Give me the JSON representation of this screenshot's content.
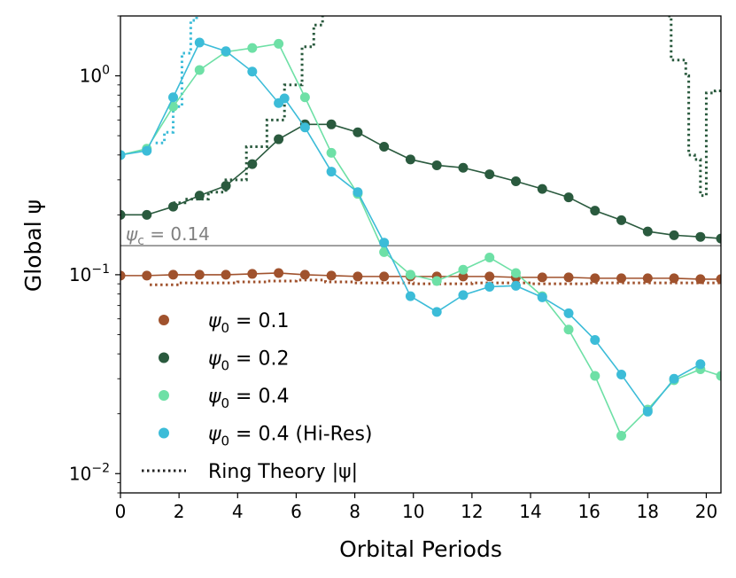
{
  "chart_data": {
    "type": "line",
    "xlabel": "Orbital Periods",
    "ylabel": "Global ψ",
    "xlim": [
      0,
      20.5
    ],
    "ylim": [
      0.008,
      2.0
    ],
    "yscale": "log",
    "grid": false,
    "legend_position": "lower-left",
    "x_ticks": [
      0,
      2,
      4,
      6,
      8,
      10,
      12,
      14,
      16,
      18,
      20
    ],
    "x_tick_labels": [
      "0",
      "2",
      "4",
      "6",
      "8",
      "10",
      "12",
      "14",
      "16",
      "18",
      "20"
    ],
    "y_ticks": [
      {
        "value": 1.0,
        "base": "10",
        "exp": "0"
      },
      {
        "value": 0.1,
        "base": "10",
        "exp": "−1"
      },
      {
        "value": 0.01,
        "base": "10",
        "exp": "−2"
      }
    ],
    "threshold": {
      "value": 0.14,
      "label_main": "ψ",
      "label_sub": "c",
      "label_rest": " = 0.14",
      "color": "#808080"
    },
    "series": [
      {
        "name": "ψ₀ = 0.1",
        "legend_main": "ψ",
        "legend_sub": "0",
        "legend_rest": " = 0.1",
        "color": "#a0522d",
        "x": [
          0,
          0.9,
          1.8,
          2.7,
          3.6,
          4.5,
          5.4,
          6.3,
          7.2,
          8.1,
          9.0,
          9.9,
          10.8,
          11.7,
          12.6,
          13.5,
          14.4,
          15.3,
          16.2,
          17.1,
          18.0,
          18.9,
          19.8,
          20.5
        ],
        "y": [
          0.099,
          0.099,
          0.1,
          0.1,
          0.1,
          0.101,
          0.102,
          0.1,
          0.099,
          0.098,
          0.098,
          0.098,
          0.098,
          0.098,
          0.098,
          0.097,
          0.097,
          0.097,
          0.096,
          0.096,
          0.096,
          0.096,
          0.095,
          0.095
        ]
      },
      {
        "name": "ψ₀ = 0.2",
        "legend_main": "ψ",
        "legend_sub": "0",
        "legend_rest": " = 0.2",
        "color": "#2a5a3e",
        "x": [
          0,
          0.9,
          1.8,
          2.7,
          3.6,
          4.5,
          5.4,
          6.3,
          7.2,
          8.1,
          9.0,
          9.9,
          10.8,
          11.7,
          12.6,
          13.5,
          14.4,
          15.3,
          16.2,
          17.1,
          18.0,
          18.9,
          19.8,
          20.5
        ],
        "y": [
          0.2,
          0.2,
          0.22,
          0.25,
          0.28,
          0.36,
          0.48,
          0.57,
          0.57,
          0.52,
          0.44,
          0.38,
          0.355,
          0.345,
          0.32,
          0.295,
          0.27,
          0.245,
          0.21,
          0.188,
          0.165,
          0.158,
          0.155,
          0.152
        ]
      },
      {
        "name": "ψ₀ = 0.4",
        "legend_main": "ψ",
        "legend_sub": "0",
        "legend_rest": " = 0.4",
        "color": "#6ee0a6",
        "x": [
          0,
          0.9,
          1.8,
          2.7,
          3.6,
          4.5,
          5.4,
          6.3,
          7.2,
          8.1,
          9.0,
          9.9,
          10.8,
          11.7,
          12.6,
          13.5,
          14.4,
          15.3,
          16.2,
          17.1,
          18.0,
          18.9,
          19.8,
          20.5
        ],
        "y": [
          0.4,
          0.43,
          0.7,
          1.07,
          1.32,
          1.38,
          1.45,
          0.78,
          0.41,
          0.255,
          0.13,
          0.1,
          0.093,
          0.106,
          0.122,
          0.102,
          0.078,
          0.053,
          0.031,
          0.0155,
          0.021,
          0.0295,
          0.0335,
          0.031
        ]
      },
      {
        "name": "ψ₀ = 0.4 (Hi-Res)",
        "legend_main": "ψ",
        "legend_sub": "0",
        "legend_rest": " = 0.4 (Hi-Res)",
        "color": "#3cbcd8",
        "x": [
          0,
          0.9,
          1.8,
          2.7,
          3.6,
          4.5,
          5.4,
          5.6,
          6.3,
          7.2,
          8.1,
          9.0,
          9.9,
          10.8,
          11.7,
          12.6,
          13.5,
          14.4,
          15.3,
          16.2,
          17.1,
          18.0,
          18.9,
          19.8
        ],
        "y": [
          0.4,
          0.42,
          0.78,
          1.47,
          1.33,
          1.05,
          0.73,
          0.77,
          0.55,
          0.33,
          0.26,
          0.145,
          0.078,
          0.065,
          0.079,
          0.087,
          0.088,
          0.077,
          0.064,
          0.047,
          0.0315,
          0.0205,
          0.03,
          0.0355
        ]
      }
    ],
    "ring_theory": {
      "legend_label": "Ring Theory |ψ|",
      "curves": [
        {
          "color": "#a0522d",
          "x": [
            1.0,
            2.0,
            3.0,
            4.0,
            5.0,
            6.0,
            7.0,
            8.0,
            9.0,
            10.0,
            11.0,
            12.0,
            13.0,
            14.0,
            15.0,
            16.0,
            17.0,
            18.0,
            19.0,
            20.5
          ],
          "y": [
            0.089,
            0.091,
            0.091,
            0.092,
            0.093,
            0.094,
            0.092,
            0.091,
            0.091,
            0.09,
            0.09,
            0.091,
            0.091,
            0.09,
            0.09,
            0.091,
            0.091,
            0.091,
            0.091,
            0.091
          ]
        },
        {
          "color": "#2a5a3e",
          "x": [
            1.8,
            2.2,
            3.0,
            3.6,
            4.3,
            5.0,
            5.6,
            6.2,
            6.6,
            6.9,
            7.0
          ],
          "y": [
            0.23,
            0.24,
            0.26,
            0.3,
            0.44,
            0.6,
            0.9,
            1.4,
            1.8,
            2.0,
            2.0
          ]
        },
        {
          "color": "#2a5a3e",
          "x": [
            18.7,
            18.8,
            19.3,
            19.4,
            19.6,
            19.8,
            20.0,
            20.3,
            20.5
          ],
          "y": [
            2.0,
            1.2,
            1.0,
            0.4,
            0.38,
            0.25,
            0.82,
            0.84,
            0.85
          ]
        },
        {
          "color": "#3cbcd8",
          "x": [
            1.2,
            1.5,
            1.8,
            2.1,
            2.4,
            2.6
          ],
          "y": [
            0.46,
            0.52,
            0.7,
            1.3,
            1.9,
            2.0
          ]
        }
      ]
    }
  }
}
